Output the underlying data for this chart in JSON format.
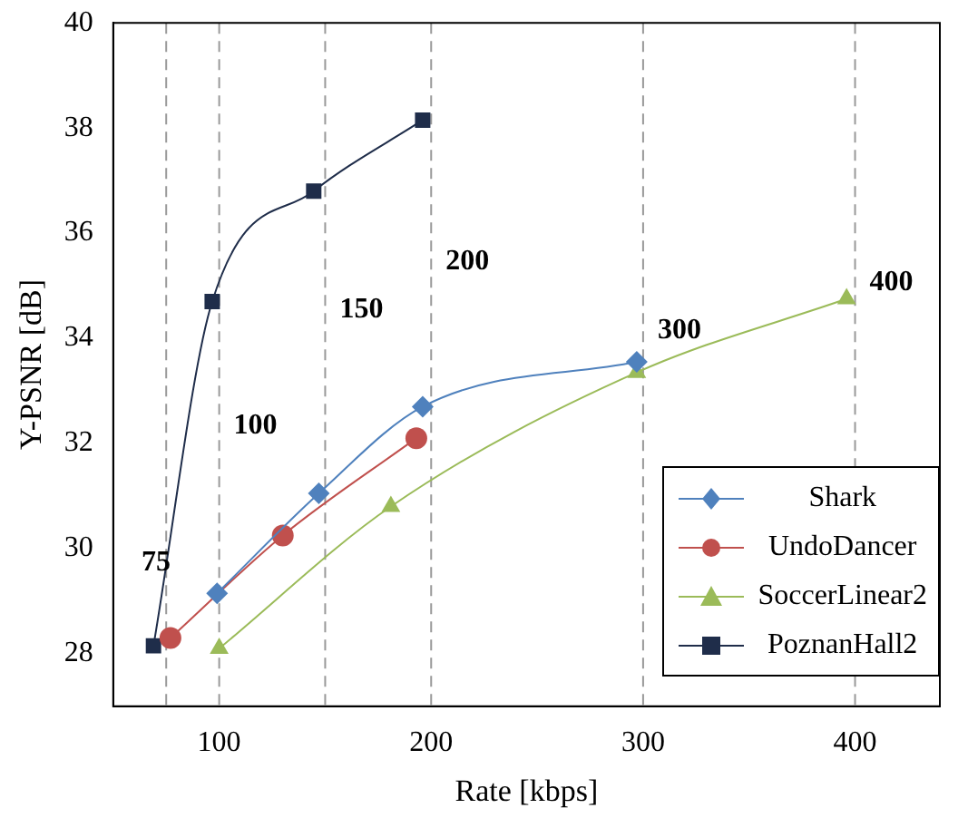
{
  "chart_data": {
    "type": "line",
    "xlabel": "Rate [kbps]",
    "ylabel": "Y-PSNR [dB]",
    "xlim": [
      50,
      440
    ],
    "xticks": [
      100,
      200,
      300,
      400
    ],
    "ylim": [
      27,
      40
    ],
    "yticks": [
      28,
      30,
      32,
      34,
      36,
      38,
      40
    ],
    "grid": false,
    "legend": "bottom right",
    "series": [
      {
        "name": "Shark",
        "color": "#4f81bd",
        "marker": "diamond",
        "x": [
          99,
          147,
          196,
          297
        ],
        "values": [
          29.15,
          31.05,
          32.7,
          33.55
        ]
      },
      {
        "name": "UndoDancer",
        "color": "#c0504d",
        "marker": "circle",
        "x": [
          77,
          130,
          193
        ],
        "values": [
          28.3,
          30.25,
          32.1
        ]
      },
      {
        "name": "SoccerLinear2",
        "color": "#9bbb59",
        "marker": "triangle",
        "x": [
          100,
          181,
          297,
          396
        ],
        "values": [
          28.1,
          30.8,
          33.35,
          34.75
        ]
      },
      {
        "name": "PoznanHall2",
        "color": "#1f2d4a",
        "marker": "square",
        "x": [
          69,
          96.7,
          144.6,
          196
        ],
        "values": [
          28.15,
          34.7,
          36.8,
          38.15
        ]
      }
    ],
    "ref_lines": [
      {
        "axis": "x",
        "value": 75,
        "label": "75",
        "color": "#999999",
        "line_style": "dashed"
      },
      {
        "axis": "x",
        "value": 100,
        "label": "100",
        "color": "#999999",
        "line_style": "dashed"
      },
      {
        "axis": "x",
        "value": 150,
        "label": "150",
        "color": "#999999",
        "line_style": "dashed"
      },
      {
        "axis": "x",
        "value": 200,
        "label": "200",
        "color": "#999999",
        "line_style": "dashed"
      },
      {
        "axis": "x",
        "value": 300,
        "label": "300",
        "color": "#999999",
        "line_style": "dashed"
      },
      {
        "axis": "x",
        "value": 400,
        "label": "400",
        "color": "#999999",
        "line_style": "dashed"
      }
    ]
  }
}
